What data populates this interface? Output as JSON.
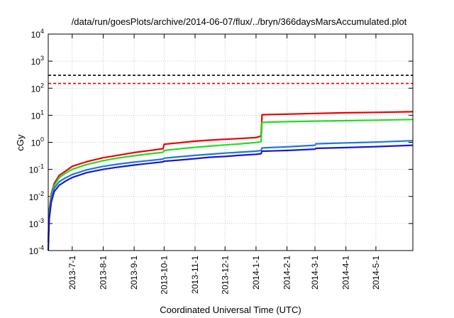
{
  "chart_data": {
    "type": "line",
    "title": "/data/run/goesPlots/archive/2014-06-07/flux/../bryn/366daysMarsAccumulated.plot",
    "xlabel": "Coordinated Universal Time (UTC)",
    "ylabel": "cGy",
    "y_scale": "log",
    "ylim": [
      0.0001,
      10000
    ],
    "xlim": [
      "2013-06-07",
      "2014-06-07"
    ],
    "y_ticks": [
      {
        "base": "10",
        "exp": "-4"
      },
      {
        "base": "10",
        "exp": "-3"
      },
      {
        "base": "10",
        "exp": "-2"
      },
      {
        "base": "10",
        "exp": "-1"
      },
      {
        "base": "10",
        "exp": "0"
      },
      {
        "base": "10",
        "exp": "1"
      },
      {
        "base": "10",
        "exp": "2"
      },
      {
        "base": "10",
        "exp": "3"
      },
      {
        "base": "10",
        "exp": "4"
      }
    ],
    "x_ticks": [
      "2013-7-1",
      "2013-8-1",
      "2013-9-1",
      "2013-10-1",
      "2013-11-1",
      "2013-12-1",
      "2014-1-1",
      "2014-2-1",
      "2014-3-1",
      "2014-4-1",
      "2014-5-1"
    ],
    "grid": true,
    "reference_lines": [
      {
        "y": 300,
        "color": "#000000",
        "style": "dashed"
      },
      {
        "y": 150,
        "color": "#e00000",
        "style": "dashed"
      }
    ],
    "series": [
      {
        "color": "#ee0000",
        "points": [
          [
            "2013-06-07",
            0.0002
          ],
          [
            "2013-06-08",
            0.003
          ],
          [
            "2013-06-10",
            0.012
          ],
          [
            "2013-06-13",
            0.03
          ],
          [
            "2013-06-18",
            0.06
          ],
          [
            "2013-06-25",
            0.09
          ],
          [
            "2013-07-01",
            0.13
          ],
          [
            "2013-07-15",
            0.19
          ],
          [
            "2013-08-01",
            0.27
          ],
          [
            "2013-08-15",
            0.33
          ],
          [
            "2013-09-01",
            0.42
          ],
          [
            "2013-09-15",
            0.49
          ],
          [
            "2013-09-30",
            0.58
          ],
          [
            "2013-10-01",
            0.85
          ],
          [
            "2013-10-15",
            0.95
          ],
          [
            "2013-11-01",
            1.1
          ],
          [
            "2013-11-15",
            1.2
          ],
          [
            "2013-12-01",
            1.3
          ],
          [
            "2013-12-15",
            1.38
          ],
          [
            "2014-01-01",
            1.5
          ],
          [
            "2014-01-06",
            1.7
          ],
          [
            "2014-01-07",
            10.5
          ],
          [
            "2014-02-01",
            11
          ],
          [
            "2014-03-01",
            11.7
          ],
          [
            "2014-04-01",
            12.3
          ],
          [
            "2014-05-01",
            12.8
          ],
          [
            "2014-06-07",
            13.5
          ]
        ]
      },
      {
        "color": "#22dd22",
        "points": [
          [
            "2013-06-07",
            0.0002
          ],
          [
            "2013-06-08",
            0.0025
          ],
          [
            "2013-06-10",
            0.01
          ],
          [
            "2013-06-13",
            0.025
          ],
          [
            "2013-06-18",
            0.05
          ],
          [
            "2013-06-25",
            0.075
          ],
          [
            "2013-07-01",
            0.1
          ],
          [
            "2013-07-15",
            0.15
          ],
          [
            "2013-08-01",
            0.21
          ],
          [
            "2013-08-15",
            0.26
          ],
          [
            "2013-09-01",
            0.32
          ],
          [
            "2013-09-15",
            0.37
          ],
          [
            "2013-09-30",
            0.43
          ],
          [
            "2013-10-01",
            0.5
          ],
          [
            "2013-10-15",
            0.57
          ],
          [
            "2013-11-01",
            0.65
          ],
          [
            "2013-11-15",
            0.72
          ],
          [
            "2013-12-01",
            0.8
          ],
          [
            "2013-12-15",
            0.87
          ],
          [
            "2014-01-01",
            0.98
          ],
          [
            "2014-01-06",
            1.05
          ],
          [
            "2014-01-07",
            5.5
          ],
          [
            "2014-02-01",
            5.8
          ],
          [
            "2014-03-01",
            6.1
          ],
          [
            "2014-04-01",
            6.3
          ],
          [
            "2014-05-01",
            6.6
          ],
          [
            "2014-06-07",
            7
          ]
        ]
      },
      {
        "color": "#1f77e0",
        "points": [
          [
            "2013-06-07",
            0.0002
          ],
          [
            "2013-06-08",
            0.002
          ],
          [
            "2013-06-10",
            0.008
          ],
          [
            "2013-06-13",
            0.02
          ],
          [
            "2013-06-18",
            0.035
          ],
          [
            "2013-06-25",
            0.05
          ],
          [
            "2013-07-01",
            0.065
          ],
          [
            "2013-07-15",
            0.095
          ],
          [
            "2013-08-01",
            0.13
          ],
          [
            "2013-08-15",
            0.155
          ],
          [
            "2013-09-01",
            0.185
          ],
          [
            "2013-09-15",
            0.21
          ],
          [
            "2013-09-30",
            0.24
          ],
          [
            "2013-10-01",
            0.26
          ],
          [
            "2013-10-15",
            0.29
          ],
          [
            "2013-11-01",
            0.33
          ],
          [
            "2013-11-15",
            0.36
          ],
          [
            "2013-12-01",
            0.4
          ],
          [
            "2013-12-15",
            0.43
          ],
          [
            "2014-01-01",
            0.47
          ],
          [
            "2014-01-06",
            0.5
          ],
          [
            "2014-01-07",
            0.62
          ],
          [
            "2014-02-01",
            0.68
          ],
          [
            "2014-03-01",
            0.78
          ],
          [
            "2014-03-02",
            0.88
          ],
          [
            "2014-04-01",
            0.95
          ],
          [
            "2014-05-01",
            1.02
          ],
          [
            "2014-06-07",
            1.15
          ]
        ]
      },
      {
        "color": "#1a1acc",
        "points": [
          [
            "2013-06-07",
            0.0001
          ],
          [
            "2013-06-08",
            0.0015
          ],
          [
            "2013-06-10",
            0.006
          ],
          [
            "2013-06-13",
            0.015
          ],
          [
            "2013-06-18",
            0.026
          ],
          [
            "2013-06-25",
            0.038
          ],
          [
            "2013-07-01",
            0.05
          ],
          [
            "2013-07-15",
            0.075
          ],
          [
            "2013-08-01",
            0.1
          ],
          [
            "2013-08-15",
            0.12
          ],
          [
            "2013-09-01",
            0.145
          ],
          [
            "2013-09-15",
            0.165
          ],
          [
            "2013-09-30",
            0.19
          ],
          [
            "2013-10-01",
            0.2
          ],
          [
            "2013-10-15",
            0.22
          ],
          [
            "2013-11-01",
            0.25
          ],
          [
            "2013-11-15",
            0.28
          ],
          [
            "2013-12-01",
            0.3
          ],
          [
            "2013-12-15",
            0.33
          ],
          [
            "2014-01-01",
            0.36
          ],
          [
            "2014-01-06",
            0.38
          ],
          [
            "2014-01-07",
            0.47
          ],
          [
            "2014-02-01",
            0.5
          ],
          [
            "2014-03-01",
            0.56
          ],
          [
            "2014-03-02",
            0.6
          ],
          [
            "2014-04-01",
            0.64
          ],
          [
            "2014-05-01",
            0.69
          ],
          [
            "2014-06-07",
            0.78
          ]
        ]
      }
    ]
  }
}
